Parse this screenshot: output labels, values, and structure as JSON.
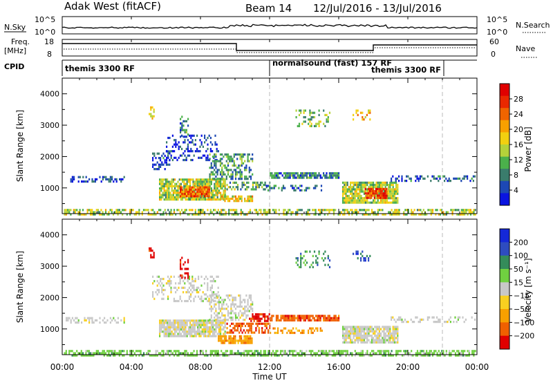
{
  "header": {
    "station": "Adak West (fitACF)",
    "beam": "Beam 14",
    "dates": "12/Jul/2016 - 13/Jul/2016"
  },
  "top_panels": {
    "nsky_label": "N.Sky",
    "nsky_ticks": [
      "10^5",
      "10^0"
    ],
    "nsearch_label": "N.Search",
    "freq_label": "Freq.",
    "freq_unit": "[MHz]",
    "freq_ticks": [
      "18",
      "8"
    ],
    "nave_ticks": [
      "60",
      "0"
    ],
    "nave_label": "Nave",
    "cpid_label": "CPID",
    "cpid_segments": [
      {
        "label": "themis 3300 RF"
      },
      {
        "label": "normalsound (fast) 157 RF"
      },
      {
        "label": "themis 3300 RF"
      }
    ]
  },
  "chart_data": [
    {
      "type": "heatmap",
      "name": "power",
      "xlabel": "Time UT",
      "ylabel": "Slant Range [km]",
      "x_ticks": [
        "00:00",
        "04:00",
        "08:00",
        "12:00",
        "16:00",
        "20:00",
        "00:00"
      ],
      "x_range_hours": [
        0,
        24
      ],
      "y_ticks": [
        1000,
        2000,
        3000,
        4000
      ],
      "ylim": [
        180,
        4500
      ],
      "colorbar": {
        "label": "Power [dB]",
        "ticks": [
          4,
          8,
          12,
          16,
          20,
          24,
          28
        ],
        "range": [
          0,
          32
        ],
        "colors": [
          "#0a14e0",
          "#1d48b4",
          "#3a7c6c",
          "#4bb04b",
          "#b4d23a",
          "#f2d010",
          "#f8a000",
          "#f06400",
          "#ea2800",
          "#e00000"
        ]
      },
      "regions": [
        {
          "t": [
            0.1,
            23.9
          ],
          "r": [
            180,
            330
          ],
          "level": 0.45,
          "density": 0.55
        },
        {
          "t": [
            0.2,
            3.6
          ],
          "r": [
            1180,
            1380
          ],
          "level": 0.15,
          "density": 0.35
        },
        {
          "t": [
            5.6,
            9.4
          ],
          "r": [
            640,
            1300
          ],
          "level": 0.45,
          "density": 0.85
        },
        {
          "t": [
            6.8,
            8.5
          ],
          "r": [
            750,
            1050
          ],
          "level": 0.75,
          "density": 0.9
        },
        {
          "t": [
            5.2,
            6.2
          ],
          "r": [
            1600,
            2200
          ],
          "level": 0.15,
          "density": 0.35
        },
        {
          "t": [
            6.0,
            9.0
          ],
          "r": [
            1900,
            2700
          ],
          "level": 0.12,
          "density": 0.3
        },
        {
          "t": [
            8.5,
            11.0
          ],
          "r": [
            1300,
            2100
          ],
          "level": 0.3,
          "density": 0.5
        },
        {
          "t": [
            9.5,
            12.0
          ],
          "r": [
            950,
            1200
          ],
          "level": 0.35,
          "density": 0.5
        },
        {
          "t": [
            9.2,
            11.0
          ],
          "r": [
            580,
            760
          ],
          "level": 0.55,
          "density": 0.75
        },
        {
          "t": [
            12.0,
            16.0
          ],
          "r": [
            1300,
            1500
          ],
          "level": 0.25,
          "density": 0.8
        },
        {
          "t": [
            11.7,
            15.0
          ],
          "r": [
            900,
            1100
          ],
          "level": 0.2,
          "density": 0.4
        },
        {
          "t": [
            16.2,
            19.4
          ],
          "r": [
            560,
            1200
          ],
          "level": 0.45,
          "density": 0.85
        },
        {
          "t": [
            17.5,
            18.8
          ],
          "r": [
            650,
            1000
          ],
          "level": 0.85,
          "density": 0.9
        },
        {
          "t": [
            19.0,
            23.9
          ],
          "r": [
            1200,
            1400
          ],
          "level": 0.15,
          "density": 0.35
        },
        {
          "t": [
            5.0,
            5.3
          ],
          "r": [
            3200,
            3600
          ],
          "level": 0.55,
          "density": 0.4
        },
        {
          "t": [
            6.8,
            7.3
          ],
          "r": [
            2600,
            3300
          ],
          "level": 0.25,
          "density": 0.35
        },
        {
          "t": [
            13.5,
            15.5
          ],
          "r": [
            3000,
            3500
          ],
          "level": 0.4,
          "density": 0.25
        },
        {
          "t": [
            16.8,
            17.8
          ],
          "r": [
            3200,
            3500
          ],
          "level": 0.6,
          "density": 0.3
        }
      ]
    },
    {
      "type": "heatmap",
      "name": "velocity",
      "xlabel": "Time UT",
      "ylabel": "Slant Range [km]",
      "x_ticks": [
        "00:00",
        "04:00",
        "08:00",
        "12:00",
        "16:00",
        "20:00",
        "00:00"
      ],
      "x_range_hours": [
        0,
        24
      ],
      "y_ticks": [
        1000,
        2000,
        3000,
        4000
      ],
      "ylim": [
        180,
        4500
      ],
      "colorbar": {
        "label": "Velocity [m s⁻¹]",
        "ticks": [
          "200",
          "100",
          "50",
          "15",
          "-15",
          "-50",
          "-100",
          "-200"
        ],
        "colors": [
          "#1428d8",
          "#2e4cc0",
          "#348c5a",
          "#70d040",
          "#c8c8c8",
          "#f8d020",
          "#f8a000",
          "#f06000",
          "#e00000"
        ]
      },
      "regions": [
        {
          "t": [
            0.1,
            23.9
          ],
          "r": [
            180,
            330
          ],
          "class": 3,
          "density": 0.6
        },
        {
          "t": [
            0.2,
            3.6
          ],
          "r": [
            1180,
            1380
          ],
          "class": 4,
          "density": 0.35
        },
        {
          "t": [
            5.6,
            9.4
          ],
          "r": [
            750,
            1300
          ],
          "class": 4,
          "density": 0.85
        },
        {
          "t": [
            5.2,
            9.0
          ],
          "r": [
            1900,
            2700
          ],
          "class": 4,
          "density": 0.3
        },
        {
          "t": [
            8.5,
            11.0
          ],
          "r": [
            1300,
            2100
          ],
          "class": 4,
          "density": 0.45
        },
        {
          "t": [
            9.0,
            11.0
          ],
          "r": [
            580,
            800
          ],
          "class": 6,
          "density": 0.8
        },
        {
          "t": [
            9.5,
            12.0
          ],
          "r": [
            900,
            1200
          ],
          "class": 7,
          "density": 0.6
        },
        {
          "t": [
            10.8,
            12.0
          ],
          "r": [
            1250,
            1500
          ],
          "class": 8,
          "density": 0.75
        },
        {
          "t": [
            12.0,
            16.0
          ],
          "r": [
            1250,
            1450
          ],
          "class": 7,
          "density": 0.8
        },
        {
          "t": [
            12.0,
            15.0
          ],
          "r": [
            850,
            1050
          ],
          "class": 6,
          "density": 0.5
        },
        {
          "t": [
            16.2,
            19.4
          ],
          "r": [
            560,
            1100
          ],
          "class": 4,
          "density": 0.85
        },
        {
          "t": [
            19.0,
            23.9
          ],
          "r": [
            1200,
            1400
          ],
          "class": 4,
          "density": 0.35
        },
        {
          "t": [
            5.0,
            5.3
          ],
          "r": [
            3200,
            3600
          ],
          "class": 8,
          "density": 0.45
        },
        {
          "t": [
            6.8,
            7.3
          ],
          "r": [
            2600,
            3300
          ],
          "class": 8,
          "density": 0.3
        },
        {
          "t": [
            13.5,
            15.5
          ],
          "r": [
            3000,
            3500
          ],
          "class": 2,
          "density": 0.25
        },
        {
          "t": [
            16.8,
            17.8
          ],
          "r": [
            3200,
            3500
          ],
          "class": 1,
          "density": 0.3
        }
      ]
    }
  ]
}
